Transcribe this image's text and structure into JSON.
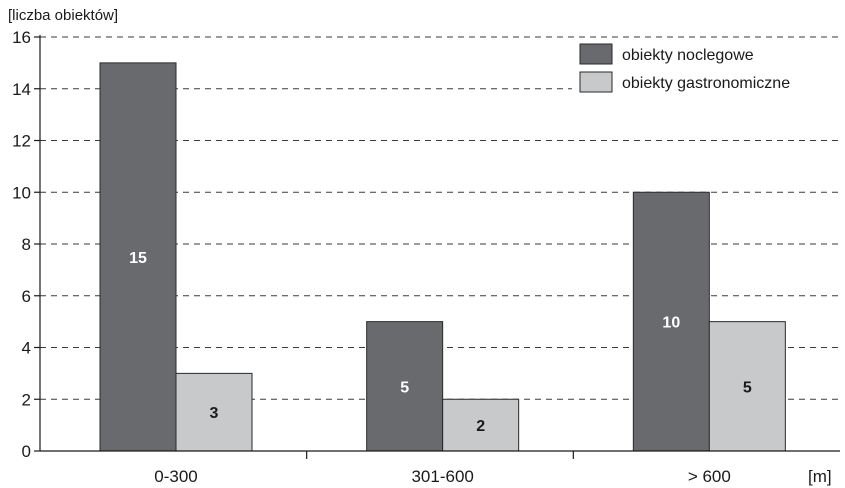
{
  "chart_data": {
    "type": "bar",
    "ylabel": "[liczba obiektów]",
    "xunit": "[m]",
    "categories": [
      "0-300",
      "301-600",
      "> 600"
    ],
    "series": [
      {
        "name": "obiekty noclegowe",
        "values": [
          15,
          5,
          10
        ],
        "color": "#696a6e",
        "label_color": "#ffffff"
      },
      {
        "name": "obiekty gastronomiczne",
        "values": [
          3,
          2,
          5
        ],
        "color": "#c8c9cb",
        "label_color": "#1a1a1a"
      }
    ],
    "ylim": [
      0,
      16
    ],
    "yticks": [
      0,
      2,
      4,
      6,
      8,
      10,
      12,
      14,
      16
    ],
    "grid": true,
    "legend_position": "top-right"
  }
}
